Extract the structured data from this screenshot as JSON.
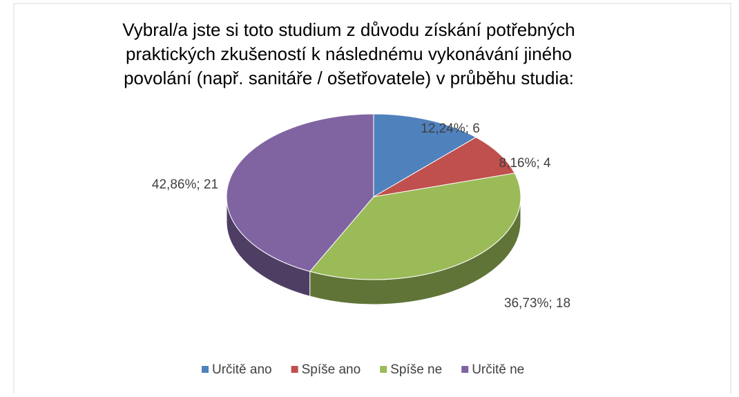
{
  "chart_data": {
    "type": "pie3d",
    "title": [
      "Vybral/a jste si toto studium z důvodu získání potřebných",
      "praktických zkušeností k následnému vykonávání jiného",
      "povolání (např. sanitáře / ošetřovatele) v průběhu studia:"
    ],
    "categories": [
      "Určitě ano",
      "Spíše ano",
      "Spíše ne",
      "Určitě ne"
    ],
    "values": [
      12.24,
      8.16,
      36.73,
      42.86
    ],
    "counts": [
      6,
      4,
      18,
      21
    ],
    "value_labels": [
      "12,24%; 6",
      "8,16%; 4",
      "36,73%; 18",
      "42,86%; 21"
    ],
    "colors": [
      "#4f81bd",
      "#c0504d",
      "#9bbb59",
      "#8064a2"
    ],
    "legend": "bottom"
  }
}
